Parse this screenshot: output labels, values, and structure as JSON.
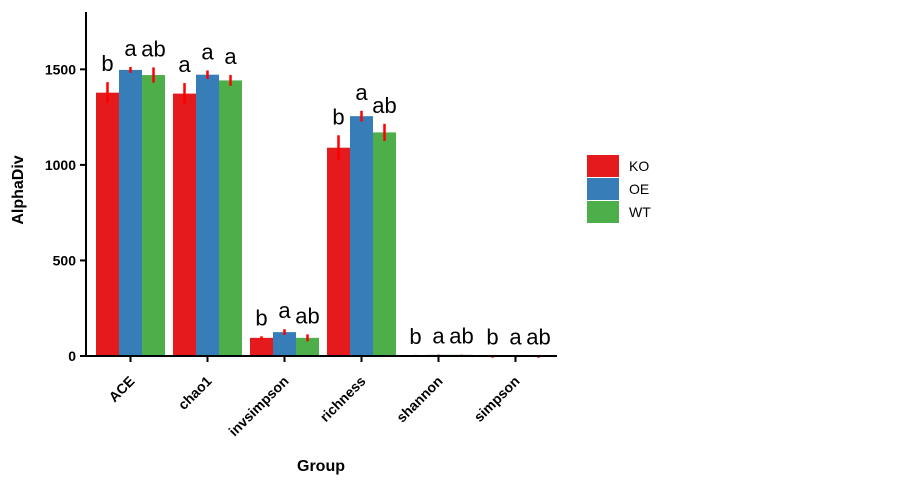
{
  "chart_data": {
    "type": "bar",
    "title": "",
    "xlabel": "Group",
    "ylabel": "AlphaDiv",
    "categories": [
      "ACE",
      "chao1",
      "invsimpson",
      "richness",
      "shannon",
      "simpson"
    ],
    "ylim": [
      0,
      1800
    ],
    "yticks": [
      0,
      500,
      1000,
      1500
    ],
    "grid": false,
    "legend_position": "right",
    "series": [
      {
        "name": "KO",
        "color": "#E41A1C",
        "values": [
          1378,
          1373,
          95,
          1090,
          5,
          1
        ],
        "errors": [
          55,
          55,
          8,
          65,
          1,
          0.5
        ],
        "labels": [
          "b",
          "a",
          "b",
          "b",
          "b",
          "b"
        ]
      },
      {
        "name": "OE",
        "color": "#377EB8",
        "values": [
          1497,
          1472,
          125,
          1255,
          6,
          1
        ],
        "errors": [
          15,
          22,
          15,
          28,
          1,
          0.5
        ],
        "labels": [
          "a",
          "a",
          "a",
          "a",
          "a",
          "a"
        ]
      },
      {
        "name": "WT",
        "color": "#4DAF4A",
        "values": [
          1470,
          1442,
          95,
          1170,
          6,
          1
        ],
        "errors": [
          40,
          28,
          18,
          45,
          1,
          0.5
        ],
        "labels": [
          "ab",
          "a",
          "ab",
          "ab",
          "ab",
          "ab"
        ]
      }
    ],
    "error_bar_color": "#FF0000"
  }
}
